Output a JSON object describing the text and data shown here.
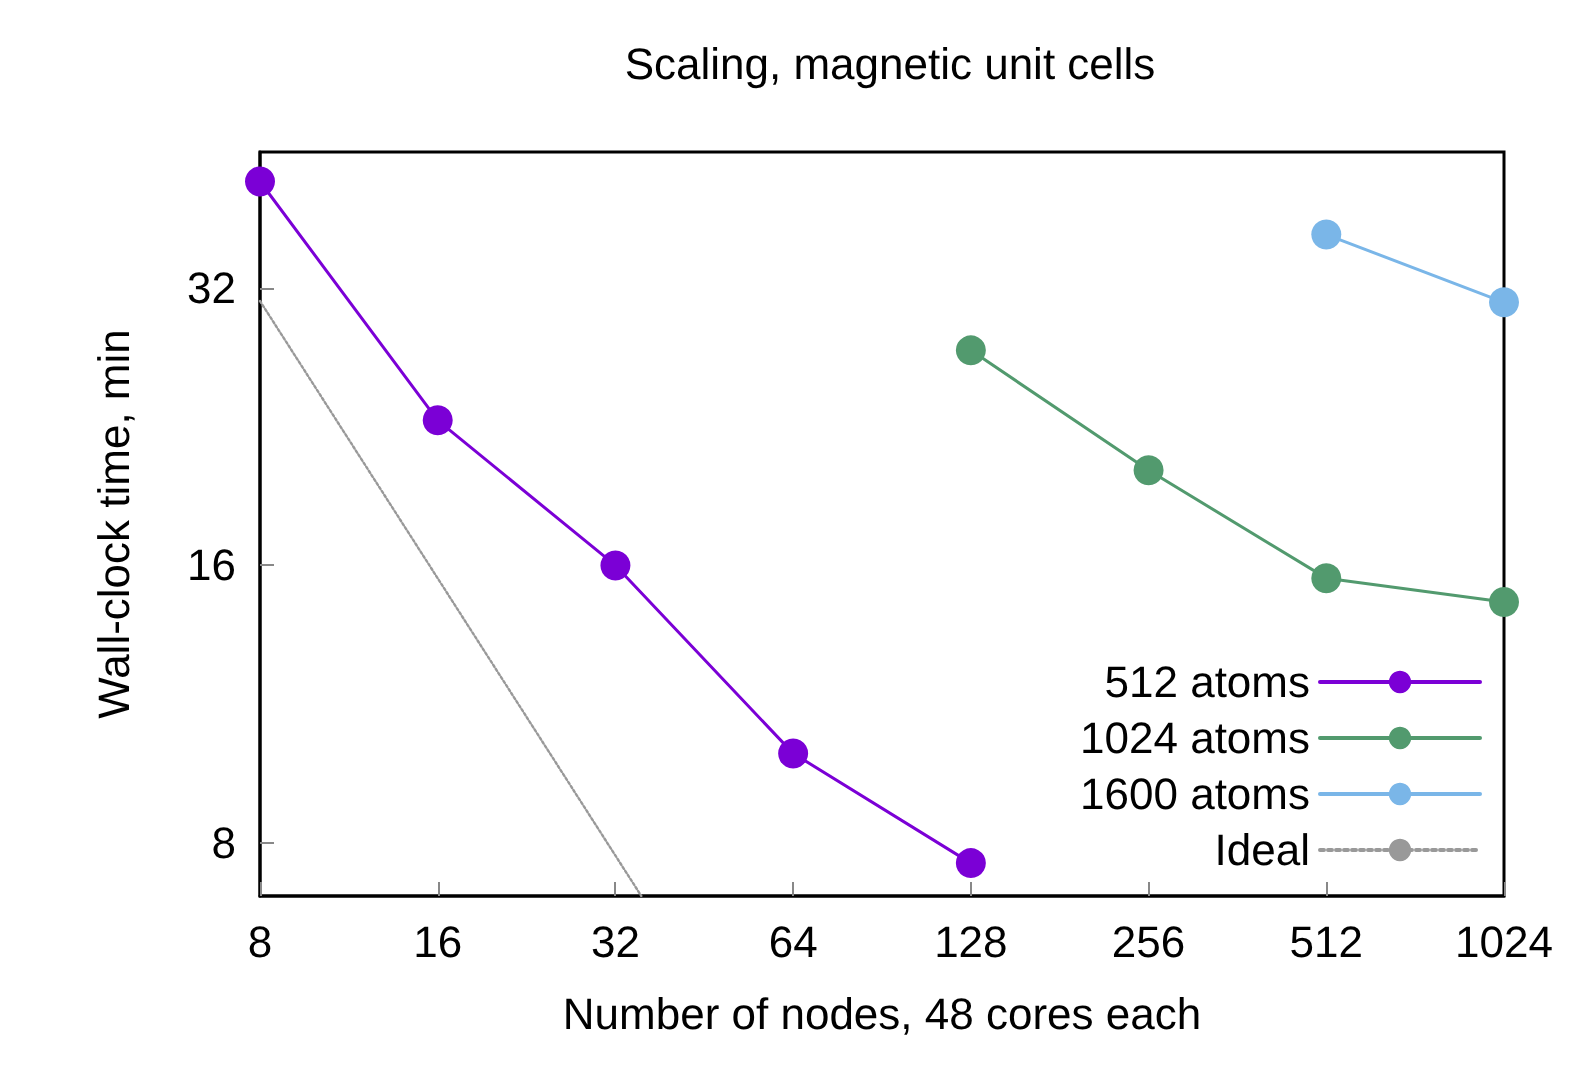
{
  "chart_data": {
    "type": "line",
    "title": "Scaling, magnetic unit cells",
    "xlabel": "Number of nodes, 48 cores each",
    "ylabel": "Wall-clock time, min",
    "log": "xy",
    "xlim": [
      8,
      1024
    ],
    "xticks": [
      8,
      16,
      32,
      64,
      128,
      256,
      512,
      1024
    ],
    "ylim": [
      7,
      45
    ],
    "yticks": [
      8,
      16,
      32
    ],
    "legend": "bottom right",
    "marker": "circle",
    "grid": false,
    "series": [
      {
        "name": "512 atoms",
        "color": "#7b00d6",
        "x": [
          8,
          16,
          32,
          64,
          128
        ],
        "values": [
          41.8,
          23,
          16,
          10,
          7.6
        ]
      },
      {
        "name": "1024 atoms",
        "color": "#529a6e",
        "x": [
          128,
          256,
          512,
          1024
        ],
        "values": [
          27.4,
          20.3,
          15.5,
          14.6
        ]
      },
      {
        "name": "1600 atoms",
        "color": "#7ab6e8",
        "x": [
          512,
          1024
        ],
        "values": [
          36.6,
          30.9
        ]
      },
      {
        "name": "Ideal",
        "color": "#999999",
        "x": [
          8,
          35.4
        ],
        "values": [
          31,
          7
        ],
        "marker": "none",
        "line_style": "dotted"
      }
    ]
  }
}
